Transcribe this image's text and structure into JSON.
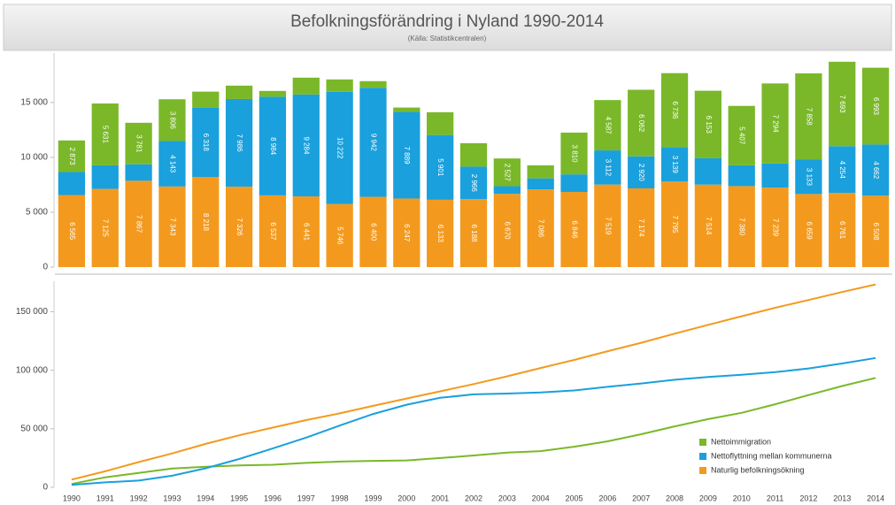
{
  "chart_data": [
    {
      "type": "bar",
      "stacked": true,
      "title": "Befolkningsförändring i Nyland 1990-2014",
      "subtitle": "(Källa: Statistikcentralen)",
      "categories": [
        "1990",
        "1991",
        "1992",
        "1993",
        "1994",
        "1995",
        "1996",
        "1997",
        "1998",
        "1999",
        "2000",
        "2001",
        "2002",
        "2003",
        "2004",
        "2005",
        "2006",
        "2007",
        "2008",
        "2009",
        "2010",
        "2011",
        "2012",
        "2013",
        "2014"
      ],
      "series": [
        {
          "name": "Naturlig befolkningsökning",
          "color": "#f39a1e",
          "values": [
            6565,
            7125,
            7867,
            7343,
            8218,
            7326,
            6537,
            6441,
            5746,
            6400,
            6247,
            6133,
            6188,
            6670,
            7086,
            6846,
            7519,
            7174,
            7795,
            7514,
            7380,
            7239,
            6659,
            6761,
            6508
          ],
          "value_labels": [
            "6 565",
            "7 125",
            "7 867",
            "7 343",
            "8 218",
            "7 326",
            "6 537",
            "6 441",
            "5 746",
            "6 400",
            "6 247",
            "6 133",
            "6 188",
            "6 670",
            "7 086",
            "6 846",
            "7 519",
            "7 174",
            "7 795",
            "7 514",
            "7 380",
            "7 239",
            "6 659",
            "6 761",
            "6 508"
          ]
        },
        {
          "name": "Nettoflyttning mellan kommunerna",
          "color": "#1aa0dc",
          "values": [
            2100,
            2150,
            1500,
            4143,
            6318,
            7986,
            8984,
            9284,
            10222,
            9942,
            7889,
            5901,
            2966,
            700,
            1000,
            1600,
            3112,
            2920,
            3139,
            2400,
            1900,
            2200,
            3133,
            4254,
            4662
          ],
          "value_labels": [
            null,
            null,
            null,
            "4 143",
            "6 318",
            "7 986",
            "8 984",
            "9 284",
            "10 222",
            "9 942",
            "7 889",
            "5 901",
            "2 966",
            null,
            null,
            null,
            "3 112",
            "2 920",
            "3 139",
            null,
            null,
            null,
            "3 133",
            "4 254",
            "4 662"
          ]
        },
        {
          "name": "Nettoimmigration",
          "color": "#7ab829",
          "values": [
            2873,
            5631,
            3781,
            3806,
            1450,
            1220,
            530,
            1535,
            1130,
            600,
            400,
            2076,
            2136,
            2527,
            1184,
            3810,
            4587,
            6062,
            6736,
            6153,
            5407,
            7294,
            7858,
            7693,
            6993
          ],
          "value_labels": [
            "2 873",
            "5 631",
            "3 781",
            "3 806",
            null,
            null,
            null,
            null,
            null,
            null,
            null,
            null,
            null,
            "2 527",
            null,
            "3 810",
            "4 587",
            "6 062",
            "6 736",
            "6 153",
            "5 407",
            "7 294",
            "7 858",
            "7 693",
            "6 993"
          ]
        }
      ],
      "ylim": [
        0,
        19500
      ],
      "yticks": [
        0,
        {
          "value": 5000,
          "label": "5 000"
        },
        {
          "value": 10000,
          "label": "10 000"
        },
        {
          "value": 15000,
          "label": "15 000"
        }
      ],
      "grid": false
    },
    {
      "type": "line",
      "series": [
        {
          "name": "Nettoimmigration",
          "color": "#7ab829",
          "values": [
            2873,
            8504,
            12285,
            16091,
            17541,
            18761,
            19291,
            20826,
            21956,
            22556,
            22956,
            25032,
            27168,
            29695,
            30879,
            34689,
            39276,
            45338,
            52074,
            58227,
            63634,
            70928,
            78786,
            86479,
            93472
          ]
        },
        {
          "name": "Nettoflyttning mellan kommunerna",
          "color": "#1aa0dc",
          "values": [
            2100,
            4250,
            5750,
            9893,
            16211,
            24197,
            33181,
            42465,
            52687,
            62629,
            70518,
            76419,
            79385,
            80085,
            81085,
            82685,
            85797,
            88717,
            91856,
            94256,
            96156,
            98356,
            101489,
            105743,
            110405
          ]
        },
        {
          "name": "Naturlig befolkningsökning",
          "color": "#f39a1e",
          "values": [
            6565,
            13690,
            21557,
            28900,
            37118,
            44444,
            50981,
            57422,
            63168,
            69568,
            75815,
            81948,
            88136,
            94806,
            101892,
            108738,
            116257,
            123431,
            131226,
            138740,
            146120,
            153359,
            160018,
            166779,
            173287
          ]
        }
      ],
      "ylim": [
        0,
        176000
      ],
      "yticks": [
        0,
        {
          "value": 50000,
          "label": "50 000"
        },
        {
          "value": 100000,
          "label": "100 000"
        },
        {
          "value": 150000,
          "label": "150 000"
        }
      ],
      "legend": "lower right"
    }
  ]
}
